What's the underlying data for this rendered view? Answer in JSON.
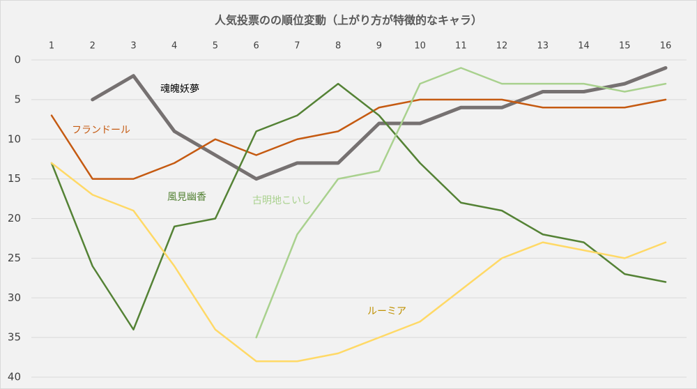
{
  "chart_data": {
    "type": "line",
    "title": "人気投票のの順位変動（上がり方が特徴的なキャラ）",
    "categories": [
      "1",
      "2",
      "3",
      "4",
      "5",
      "6",
      "7",
      "8",
      "9",
      "10",
      "11",
      "12",
      "13",
      "14",
      "15",
      "16"
    ],
    "series": [
      {
        "name": "魂魄妖夢",
        "color": "#767171",
        "label_color": "#000000",
        "width": 5,
        "values": [
          null,
          5,
          2,
          9,
          12,
          15,
          13,
          13,
          8,
          8,
          6,
          6,
          4,
          4,
          3,
          1
        ]
      },
      {
        "name": "フランドール",
        "color": "#c55a11",
        "label_color": "#c55a11",
        "width": 2.5,
        "values": [
          7,
          15,
          15,
          13,
          10,
          12,
          10,
          9,
          6,
          5,
          5,
          5,
          6,
          6,
          6,
          5
        ]
      },
      {
        "name": "風見幽香",
        "color": "#548235",
        "label_color": "#548235",
        "width": 2.5,
        "values": [
          13,
          26,
          34,
          21,
          20,
          9,
          7,
          3,
          7,
          13,
          18,
          19,
          22,
          23,
          27,
          28
        ]
      },
      {
        "name": "古明地こいし",
        "color": "#a9d18e",
        "label_color": "#a9d18e",
        "width": 2.5,
        "values": [
          null,
          null,
          null,
          null,
          null,
          35,
          22,
          15,
          14,
          3,
          1,
          3,
          3,
          3,
          4,
          3
        ]
      },
      {
        "name": "ルーミア",
        "color": "#ffd966",
        "label_color": "#bf9000",
        "width": 2.5,
        "values": [
          13,
          17,
          19,
          26,
          34,
          38,
          38,
          37,
          35,
          33,
          29,
          25,
          23,
          24,
          25,
          23
        ]
      }
    ],
    "ylim": [
      0,
      40
    ],
    "yticks": [
      0,
      5,
      10,
      15,
      20,
      25,
      30,
      35,
      40
    ],
    "y_inverted": true,
    "grid": true
  }
}
